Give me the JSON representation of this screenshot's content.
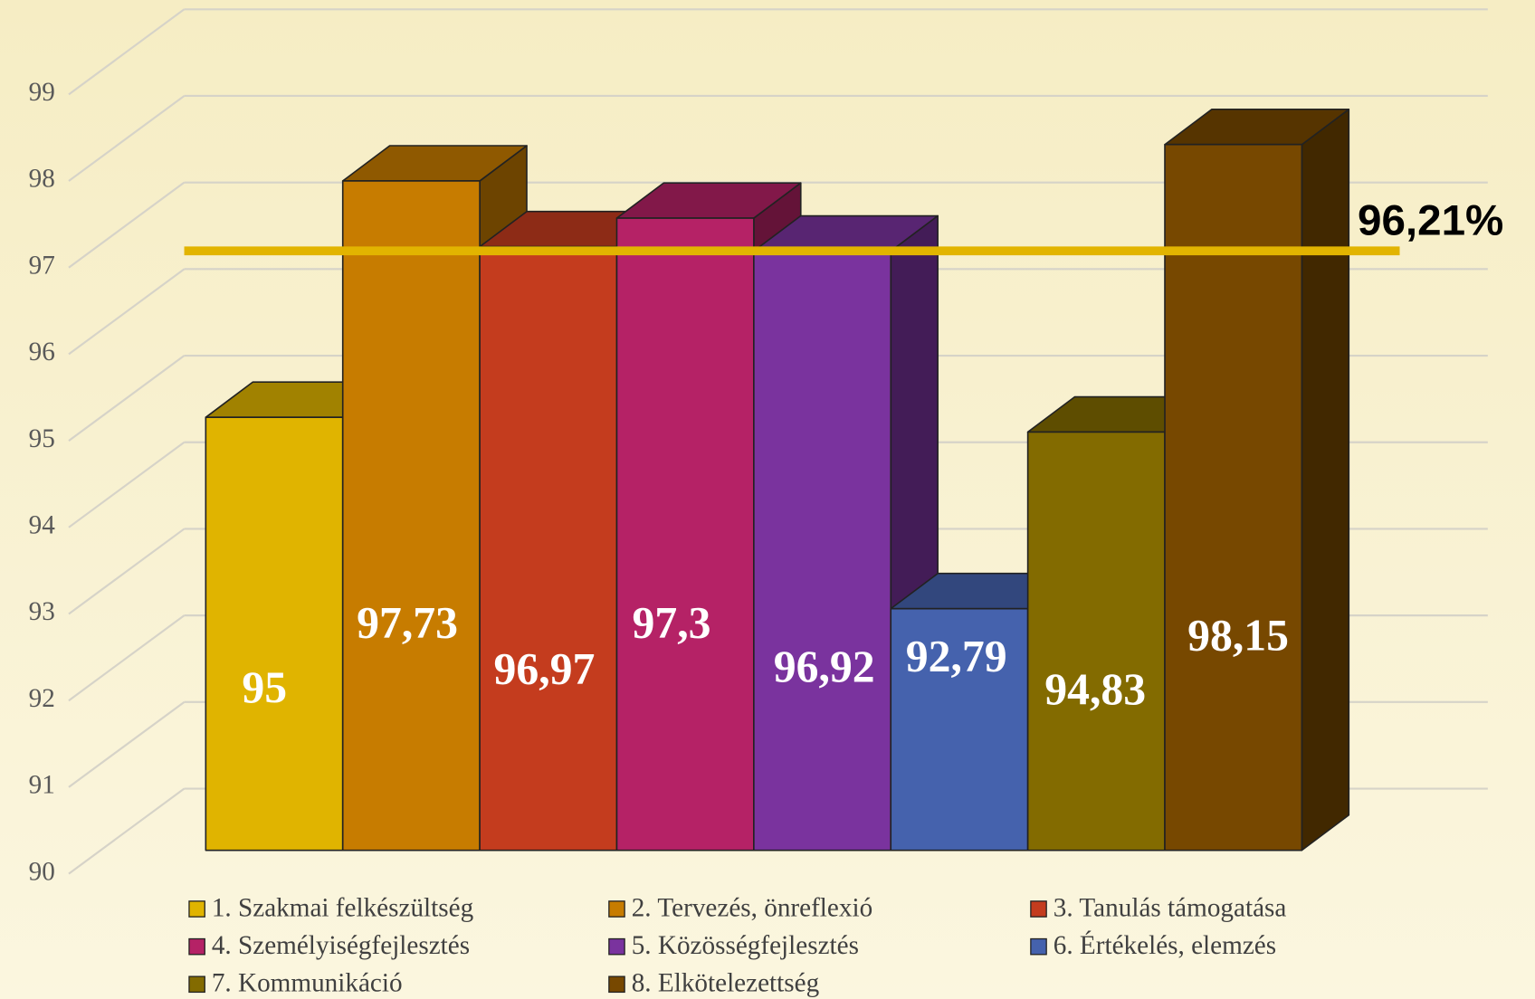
{
  "chart_data": {
    "type": "bar3d",
    "ylim": [
      90,
      99
    ],
    "yticks": [
      90,
      91,
      92,
      93,
      94,
      95,
      96,
      97,
      98,
      99
    ],
    "grid": true,
    "series": [
      {
        "name": "1. Szakmai felkészültség",
        "color": "#e0b400",
        "values": [
          95
        ],
        "value_labels": [
          "95"
        ]
      },
      {
        "name": "2. Tervezés, önreflexió",
        "color": "#c77c00",
        "values": [
          97.73
        ],
        "value_labels": [
          "97,73"
        ]
      },
      {
        "name": "3. Tanulás támogatása",
        "color": "#c43c1e",
        "values": [
          96.97
        ],
        "value_labels": [
          "96,97"
        ]
      },
      {
        "name": "4. Személyiségfejlesztés",
        "color": "#b52266",
        "values": [
          97.3
        ],
        "value_labels": [
          "97,3"
        ]
      },
      {
        "name": "5. Közösségfejlesztés",
        "color": "#7a339e",
        "values": [
          96.92
        ],
        "value_labels": [
          "96,92"
        ]
      },
      {
        "name": "6. Értékelés, elemzés",
        "color": "#4562ad",
        "values": [
          92.79
        ],
        "value_labels": [
          "92,79"
        ]
      },
      {
        "name": "7. Kommunikáció",
        "color": "#836b00",
        "values": [
          94.83
        ],
        "value_labels": [
          "94,83"
        ]
      },
      {
        "name": "8. Elkötelezettség",
        "color": "#774800",
        "values": [
          98.15
        ],
        "value_labels": [
          "98,15"
        ]
      }
    ],
    "average": {
      "value": 96.21,
      "label": "96,21%",
      "color": "#e2b400"
    }
  }
}
